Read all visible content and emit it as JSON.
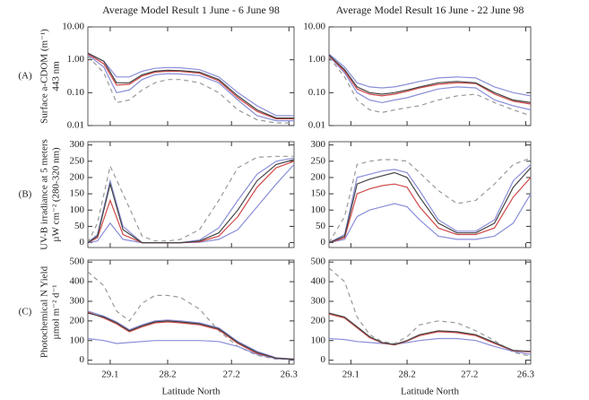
{
  "chart_data": [
    {
      "type": "line",
      "title": "Average Model Result 1 June - 6 June 98",
      "panel_label": "(A)",
      "ylabel": [
        "Surface a-CDOM (m⁻¹)",
        "443 nm"
      ],
      "log_scale": true,
      "xlim": [
        29.45,
        26.22
      ],
      "ylim": [
        0.01,
        10
      ],
      "xticks": [
        29.1,
        28.2,
        27.2,
        26.3
      ],
      "yticks": [
        {
          "value": 10,
          "label": "10.00"
        },
        {
          "value": 1,
          "label": "1.00"
        },
        {
          "value": 0.1,
          "label": "0.10"
        },
        {
          "value": 0.01,
          "label": "0.01"
        }
      ],
      "x": [
        29.45,
        29.2,
        29.0,
        28.8,
        28.6,
        28.4,
        28.2,
        28.0,
        27.7,
        27.4,
        27.1,
        26.8,
        26.5,
        26.22
      ],
      "series": [
        {
          "color": "#8a8fd8",
          "values": [
            1.5,
            0.9,
            0.3,
            0.3,
            0.45,
            0.55,
            0.58,
            0.57,
            0.5,
            0.3,
            0.1,
            0.04,
            0.02,
            0.02
          ]
        },
        {
          "color": "#8a8fd8",
          "values": [
            1.4,
            0.6,
            0.1,
            0.12,
            0.25,
            0.35,
            0.38,
            0.37,
            0.33,
            0.2,
            0.06,
            0.02,
            0.014,
            0.014
          ]
        },
        {
          "color": "#999999",
          "dash": true,
          "values": [
            1.3,
            0.4,
            0.05,
            0.06,
            0.12,
            0.2,
            0.25,
            0.25,
            0.2,
            0.1,
            0.03,
            0.015,
            0.012,
            0.012
          ]
        },
        {
          "color": "#d04a4a",
          "values": [
            1.5,
            0.75,
            0.17,
            0.18,
            0.32,
            0.42,
            0.45,
            0.44,
            0.39,
            0.23,
            0.07,
            0.027,
            0.016,
            0.016
          ]
        },
        {
          "color": "#444444",
          "values": [
            1.6,
            0.9,
            0.2,
            0.2,
            0.35,
            0.45,
            0.48,
            0.47,
            0.42,
            0.25,
            0.08,
            0.03,
            0.017,
            0.017
          ]
        }
      ]
    },
    {
      "type": "line",
      "title": "Average Model Result 16 June - 22 June 98",
      "log_scale": true,
      "xlim": [
        29.45,
        26.22
      ],
      "ylim": [
        0.01,
        10
      ],
      "xticks": [
        29.1,
        28.2,
        27.2,
        26.3
      ],
      "yticks": [
        {
          "value": 10,
          "label": "10.00"
        },
        {
          "value": 1,
          "label": "1.00"
        },
        {
          "value": 0.1,
          "label": "0.10"
        },
        {
          "value": 0.01,
          "label": "0.01"
        }
      ],
      "x": [
        29.45,
        29.2,
        29.0,
        28.8,
        28.6,
        28.4,
        28.2,
        28.0,
        27.7,
        27.4,
        27.1,
        26.8,
        26.5,
        26.22
      ],
      "series": [
        {
          "color": "#8a8fd8",
          "values": [
            1.5,
            0.6,
            0.2,
            0.15,
            0.14,
            0.15,
            0.18,
            0.22,
            0.28,
            0.3,
            0.28,
            0.15,
            0.1,
            0.08
          ]
        },
        {
          "color": "#8a8fd8",
          "values": [
            1.3,
            0.4,
            0.1,
            0.06,
            0.05,
            0.06,
            0.07,
            0.09,
            0.13,
            0.15,
            0.14,
            0.06,
            0.04,
            0.03
          ]
        },
        {
          "color": "#999999",
          "dash": true,
          "values": [
            1.2,
            0.3,
            0.06,
            0.03,
            0.025,
            0.03,
            0.035,
            0.04,
            0.06,
            0.08,
            0.09,
            0.05,
            0.03,
            0.02
          ]
        },
        {
          "color": "#d04a4a",
          "values": [
            1.35,
            0.45,
            0.13,
            0.09,
            0.08,
            0.09,
            0.11,
            0.14,
            0.18,
            0.2,
            0.19,
            0.09,
            0.055,
            0.045
          ]
        },
        {
          "color": "#444444",
          "values": [
            1.4,
            0.5,
            0.15,
            0.1,
            0.09,
            0.1,
            0.12,
            0.15,
            0.2,
            0.22,
            0.2,
            0.1,
            0.06,
            0.05
          ]
        }
      ]
    },
    {
      "type": "line",
      "panel_label": "(B)",
      "ylabel": [
        "UV-B irradiance at 5 meters",
        "µW cm⁻² (280-320 nm)"
      ],
      "xlim": [
        29.45,
        26.22
      ],
      "ylim": [
        -15,
        310
      ],
      "xticks": [
        29.1,
        28.2,
        27.2,
        26.3
      ],
      "yticks": [
        0,
        50,
        100,
        150,
        200,
        250,
        300
      ],
      "x": [
        29.45,
        29.3,
        29.1,
        28.9,
        28.6,
        28.4,
        28.2,
        28.0,
        27.7,
        27.4,
        27.1,
        26.8,
        26.5,
        26.22
      ],
      "series": [
        {
          "color": "#999999",
          "dash": true,
          "values": [
            0,
            60,
            235,
            150,
            20,
            5,
            5,
            10,
            40,
            130,
            230,
            262,
            265,
            265
          ]
        },
        {
          "color": "#8a8fd8",
          "values": [
            0,
            25,
            190,
            50,
            0,
            0,
            0,
            0,
            8,
            45,
            130,
            210,
            250,
            260
          ]
        },
        {
          "color": "#8a8fd8",
          "values": [
            0,
            5,
            60,
            10,
            0,
            0,
            0,
            0,
            1,
            10,
            40,
            110,
            180,
            240
          ]
        },
        {
          "color": "#d04a4a",
          "values": [
            0,
            15,
            130,
            25,
            0,
            0,
            0,
            0,
            3,
            20,
            80,
            170,
            230,
            250
          ]
        },
        {
          "color": "#444444",
          "values": [
            0,
            20,
            180,
            40,
            0,
            0,
            0,
            0,
            5,
            30,
            100,
            190,
            240,
            255
          ]
        }
      ]
    },
    {
      "type": "line",
      "xlim": [
        29.45,
        26.22
      ],
      "ylim": [
        -15,
        310
      ],
      "xticks": [
        29.1,
        28.2,
        27.2,
        26.3
      ],
      "yticks": [
        0,
        50,
        100,
        150,
        200,
        250,
        300
      ],
      "x": [
        29.45,
        29.2,
        29.0,
        28.8,
        28.6,
        28.4,
        28.2,
        28.0,
        27.7,
        27.4,
        27.1,
        26.8,
        26.5,
        26.22
      ],
      "series": [
        {
          "color": "#999999",
          "dash": true,
          "values": [
            0,
            80,
            240,
            250,
            255,
            255,
            250,
            215,
            160,
            120,
            130,
            180,
            240,
            260
          ]
        },
        {
          "color": "#8a8fd8",
          "values": [
            0,
            25,
            200,
            210,
            220,
            225,
            215,
            160,
            70,
            35,
            35,
            70,
            190,
            240
          ]
        },
        {
          "color": "#8a8fd8",
          "values": [
            0,
            10,
            80,
            100,
            110,
            120,
            110,
            70,
            20,
            10,
            10,
            20,
            60,
            150
          ]
        },
        {
          "color": "#d04a4a",
          "values": [
            0,
            15,
            150,
            165,
            175,
            180,
            170,
            110,
            45,
            25,
            25,
            45,
            140,
            200
          ]
        },
        {
          "color": "#444444",
          "values": [
            0,
            20,
            180,
            195,
            205,
            215,
            200,
            140,
            60,
            30,
            30,
            60,
            170,
            230
          ]
        }
      ]
    },
    {
      "type": "line",
      "panel_label": "(C)",
      "ylabel": [
        "Photochemical N Yield",
        "µmol m⁻² d⁻¹"
      ],
      "xlabel": "Latitude North",
      "xlim": [
        29.45,
        26.22
      ],
      "ylim": [
        -20,
        510
      ],
      "xticks": [
        29.1,
        28.2,
        27.2,
        26.3
      ],
      "yticks": [
        0,
        100,
        200,
        300,
        400,
        500
      ],
      "x": [
        29.45,
        29.2,
        29.0,
        28.8,
        28.6,
        28.4,
        28.2,
        28.0,
        27.7,
        27.4,
        27.1,
        26.8,
        26.5,
        26.22
      ],
      "series": [
        {
          "color": "#999999",
          "dash": true,
          "values": [
            450,
            380,
            250,
            200,
            290,
            330,
            330,
            320,
            260,
            150,
            70,
            25,
            5,
            5
          ]
        },
        {
          "color": "#8a8fd8",
          "values": [
            110,
            100,
            85,
            90,
            95,
            100,
            100,
            100,
            100,
            95,
            70,
            30,
            8,
            3
          ]
        },
        {
          "color": "#8a8fd8",
          "values": [
            250,
            225,
            195,
            155,
            180,
            200,
            205,
            200,
            190,
            165,
            95,
            45,
            12,
            5
          ]
        },
        {
          "color": "#d04a4a",
          "values": [
            245,
            215,
            185,
            145,
            170,
            190,
            195,
            190,
            180,
            155,
            85,
            35,
            10,
            5
          ]
        },
        {
          "color": "#444444",
          "values": [
            240,
            220,
            190,
            150,
            175,
            195,
            200,
            195,
            185,
            160,
            90,
            40,
            10,
            5
          ]
        }
      ]
    },
    {
      "type": "line",
      "xlabel": "Latitude North",
      "xlim": [
        29.45,
        26.22
      ],
      "ylim": [
        -20,
        510
      ],
      "xticks": [
        29.1,
        28.2,
        27.2,
        26.3
      ],
      "yticks": [
        0,
        100,
        200,
        300,
        400,
        500
      ],
      "x": [
        29.45,
        29.2,
        29.0,
        28.8,
        28.6,
        28.4,
        28.2,
        28.0,
        27.7,
        27.4,
        27.1,
        26.8,
        26.5,
        26.22
      ],
      "series": [
        {
          "color": "#999999",
          "dash": true,
          "values": [
            470,
            400,
            220,
            130,
            95,
            85,
            120,
            180,
            200,
            190,
            150,
            100,
            40,
            20
          ]
        },
        {
          "color": "#8a8fd8",
          "values": [
            110,
            105,
            95,
            90,
            85,
            80,
            90,
            100,
            110,
            110,
            100,
            70,
            45,
            30
          ]
        },
        {
          "color": "#d04a4a",
          "values": [
            235,
            215,
            165,
            115,
            88,
            78,
            98,
            125,
            145,
            140,
            125,
            85,
            48,
            42
          ]
        },
        {
          "color": "#444444",
          "values": [
            240,
            220,
            170,
            120,
            90,
            80,
            100,
            130,
            150,
            145,
            130,
            90,
            50,
            45
          ]
        }
      ]
    }
  ]
}
